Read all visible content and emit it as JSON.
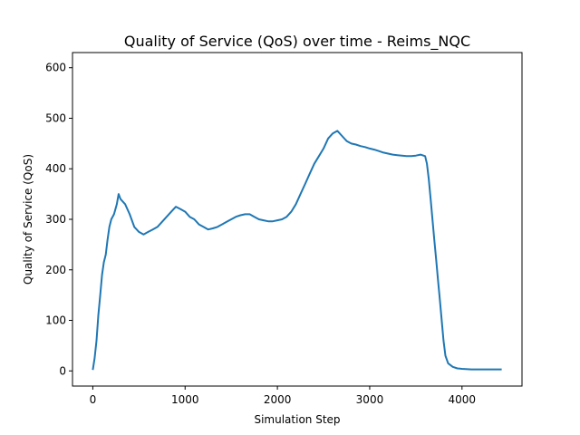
{
  "chart_data": {
    "type": "line",
    "title": "Quality of Service (QoS) over time - Reims_NQC",
    "xlabel": "Simulation Step",
    "ylabel": "Quality of Service (QoS)",
    "xlim": [
      -220,
      4650
    ],
    "ylim": [
      -30,
      630
    ],
    "xticks": [
      0,
      1000,
      2000,
      3000,
      4000
    ],
    "yticks": [
      0,
      100,
      200,
      300,
      400,
      500,
      600
    ],
    "grid": false,
    "series_color": "#1f77b4",
    "series": [
      {
        "points": [
          [
            0,
            2
          ],
          [
            20,
            25
          ],
          [
            40,
            60
          ],
          [
            60,
            110
          ],
          [
            80,
            150
          ],
          [
            100,
            190
          ],
          [
            120,
            215
          ],
          [
            140,
            230
          ],
          [
            160,
            260
          ],
          [
            180,
            285
          ],
          [
            200,
            300
          ],
          [
            230,
            310
          ],
          [
            260,
            330
          ],
          [
            280,
            350
          ],
          [
            300,
            340
          ],
          [
            350,
            330
          ],
          [
            400,
            310
          ],
          [
            450,
            285
          ],
          [
            500,
            275
          ],
          [
            550,
            270
          ],
          [
            600,
            275
          ],
          [
            650,
            280
          ],
          [
            700,
            285
          ],
          [
            750,
            295
          ],
          [
            800,
            305
          ],
          [
            850,
            315
          ],
          [
            900,
            325
          ],
          [
            950,
            320
          ],
          [
            1000,
            315
          ],
          [
            1050,
            305
          ],
          [
            1100,
            300
          ],
          [
            1150,
            290
          ],
          [
            1200,
            285
          ],
          [
            1250,
            280
          ],
          [
            1300,
            282
          ],
          [
            1350,
            285
          ],
          [
            1400,
            290
          ],
          [
            1450,
            295
          ],
          [
            1500,
            300
          ],
          [
            1550,
            305
          ],
          [
            1600,
            308
          ],
          [
            1650,
            310
          ],
          [
            1700,
            310
          ],
          [
            1750,
            305
          ],
          [
            1800,
            300
          ],
          [
            1850,
            298
          ],
          [
            1900,
            296
          ],
          [
            1950,
            296
          ],
          [
            2000,
            298
          ],
          [
            2050,
            300
          ],
          [
            2100,
            305
          ],
          [
            2150,
            315
          ],
          [
            2200,
            330
          ],
          [
            2250,
            350
          ],
          [
            2300,
            370
          ],
          [
            2350,
            390
          ],
          [
            2400,
            410
          ],
          [
            2450,
            425
          ],
          [
            2500,
            440
          ],
          [
            2550,
            460
          ],
          [
            2600,
            470
          ],
          [
            2650,
            475
          ],
          [
            2700,
            465
          ],
          [
            2750,
            455
          ],
          [
            2800,
            450
          ],
          [
            2850,
            448
          ],
          [
            2900,
            445
          ],
          [
            2950,
            443
          ],
          [
            3000,
            440
          ],
          [
            3050,
            438
          ],
          [
            3100,
            435
          ],
          [
            3150,
            432
          ],
          [
            3200,
            430
          ],
          [
            3250,
            428
          ],
          [
            3300,
            427
          ],
          [
            3350,
            426
          ],
          [
            3400,
            425
          ],
          [
            3450,
            425
          ],
          [
            3500,
            426
          ],
          [
            3550,
            428
          ],
          [
            3600,
            425
          ],
          [
            3620,
            410
          ],
          [
            3640,
            380
          ],
          [
            3660,
            340
          ],
          [
            3680,
            300
          ],
          [
            3700,
            260
          ],
          [
            3720,
            220
          ],
          [
            3740,
            180
          ],
          [
            3760,
            140
          ],
          [
            3780,
            100
          ],
          [
            3800,
            60
          ],
          [
            3820,
            30
          ],
          [
            3850,
            15
          ],
          [
            3900,
            8
          ],
          [
            3950,
            5
          ],
          [
            4000,
            4
          ],
          [
            4100,
            3
          ],
          [
            4200,
            3
          ],
          [
            4300,
            3
          ],
          [
            4400,
            3
          ],
          [
            4430,
            3
          ]
        ]
      }
    ]
  }
}
